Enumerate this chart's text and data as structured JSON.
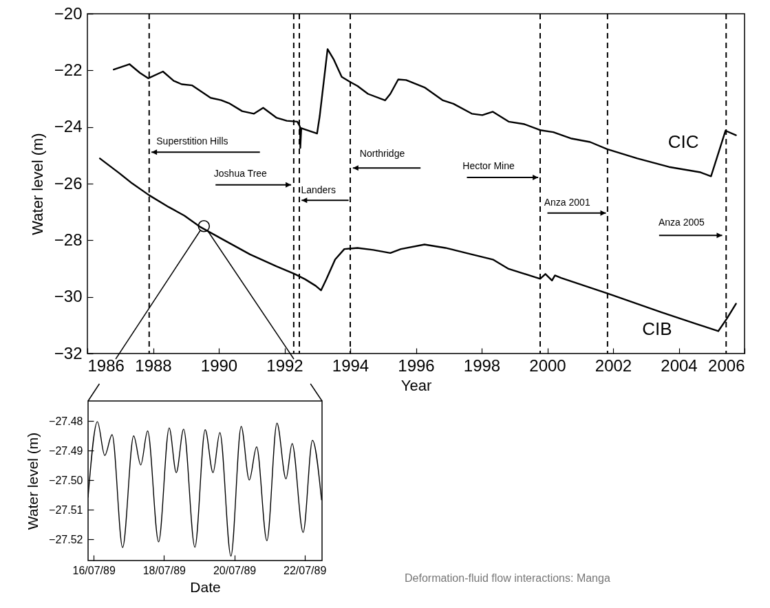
{
  "chart_data": [
    {
      "type": "line",
      "xlabel": "Year",
      "ylabel": "Water level (m)",
      "xlim": [
        1986,
        2006
      ],
      "ylim": [
        -32,
        -20
      ],
      "xticks": [
        1986,
        1988,
        1990,
        1992,
        1994,
        1996,
        1998,
        2000,
        2002,
        2004,
        2006
      ],
      "yticks": [
        -32,
        -30,
        -28,
        -26,
        -24,
        -22,
        -20
      ],
      "legend": false,
      "series": [
        {
          "name": "CIC",
          "color": "#000000",
          "x": [
            1986.8,
            1987.28,
            1987.6,
            1987.85,
            1988.3,
            1988.63,
            1988.87,
            1989.19,
            1989.75,
            1990.07,
            1990.31,
            1990.71,
            1991.07,
            1991.35,
            1991.75,
            1992.07,
            1992.39,
            1992.47,
            1992.48,
            1992.51,
            1992.99,
            1993.07,
            1993.31,
            1993.5,
            1993.74,
            1994.0,
            1994.22,
            1994.54,
            1995.06,
            1995.22,
            1995.46,
            1995.7,
            1996.26,
            1996.82,
            1997.14,
            1997.7,
            1998.02,
            1998.34,
            1998.82,
            1999.3,
            1999.78,
            2000.18,
            2000.74,
            2001.3,
            2001.82,
            2002.74,
            2003.7,
            2004.66,
            2004.98,
            2005.42,
            2005.74
          ],
          "values": [
            -21.97,
            -21.78,
            -22.09,
            -22.28,
            -22.04,
            -22.37,
            -22.49,
            -22.53,
            -22.97,
            -23.05,
            -23.16,
            -23.44,
            -23.53,
            -23.32,
            -23.67,
            -23.78,
            -23.81,
            -23.99,
            -24.74,
            -24.04,
            -24.23,
            -23.62,
            -21.25,
            -21.62,
            -22.23,
            -22.41,
            -22.55,
            -22.83,
            -23.06,
            -22.83,
            -22.32,
            -22.34,
            -22.6,
            -23.06,
            -23.18,
            -23.53,
            -23.58,
            -23.46,
            -23.81,
            -23.9,
            -24.11,
            -24.18,
            -24.41,
            -24.53,
            -24.78,
            -25.11,
            -25.41,
            -25.6,
            -25.74,
            -24.13,
            -24.29
          ]
        },
        {
          "name": "CIB",
          "color": "#000000",
          "x": [
            1986.38,
            1986.96,
            1987.36,
            1987.88,
            1988.48,
            1988.95,
            1989.45,
            1990.15,
            1990.95,
            1991.75,
            1992.31,
            1992.63,
            1992.95,
            1993.11,
            1993.27,
            1993.54,
            1993.82,
            1994.22,
            1994.7,
            1995.22,
            1995.54,
            1996.26,
            1996.9,
            1997.7,
            1998.34,
            1998.82,
            1999.78,
            1999.94,
            2000.14,
            2000.23,
            2000.42,
            2001.86,
            2003.46,
            2005.2,
            2005.46,
            2005.74
          ],
          "values": [
            -25.11,
            -25.62,
            -25.99,
            -26.41,
            -26.83,
            -27.13,
            -27.54,
            -27.99,
            -28.5,
            -28.92,
            -29.19,
            -29.38,
            -29.61,
            -29.77,
            -29.38,
            -28.68,
            -28.31,
            -28.27,
            -28.34,
            -28.45,
            -28.31,
            -28.15,
            -28.27,
            -28.5,
            -28.68,
            -29.01,
            -29.36,
            -29.19,
            -29.42,
            -29.24,
            -29.33,
            -29.89,
            -30.54,
            -31.21,
            -30.77,
            -30.24
          ]
        }
      ],
      "ref_lines": [
        {
          "axis": "x",
          "value": 1987.88,
          "label": "Superstition Hills",
          "color": "#000000",
          "line_style": "dashed"
        },
        {
          "axis": "x",
          "value": 1992.28,
          "label": "Joshua Tree",
          "color": "#000000",
          "line_style": "dashed"
        },
        {
          "axis": "x",
          "value": 1992.45,
          "label": "Landers",
          "color": "#000000",
          "line_style": "dashed"
        },
        {
          "axis": "x",
          "value": 1994.0,
          "label": "Northridge",
          "color": "#000000",
          "line_style": "dashed"
        },
        {
          "axis": "x",
          "value": 1999.78,
          "label": "Hector Mine",
          "color": "#000000",
          "line_style": "dashed"
        },
        {
          "axis": "x",
          "value": 2001.83,
          "label": "Anza 2001",
          "color": "#000000",
          "line_style": "dashed"
        },
        {
          "axis": "x",
          "value": 2005.44,
          "label": "Anza 2005",
          "color": "#000000",
          "line_style": "dashed"
        }
      ]
    },
    {
      "type": "line",
      "xlabel": "Date",
      "ylabel": "Water level (m)",
      "xlim": [
        "1989-07-15T20:09",
        "1989-07-22T11:53"
      ],
      "ylim": [
        -27.5271,
        -27.4732
      ],
      "xticks": [
        {
          "value": "1989-07-16",
          "label": "16/07/89"
        },
        {
          "value": "1989-07-18",
          "label": "18/07/89"
        },
        {
          "value": "1989-07-20",
          "label": "20/07/89"
        },
        {
          "value": "1989-07-22",
          "label": "22/07/89"
        }
      ],
      "yticks": [
        {
          "value": -27.52,
          "label": "−27.52"
        },
        {
          "value": -27.51,
          "label": "−27.51"
        },
        {
          "value": -27.5,
          "label": "−27.50"
        },
        {
          "value": -27.49,
          "label": "−27.49"
        },
        {
          "value": -27.48,
          "label": "−27.48"
        }
      ],
      "legend": false,
      "series": [
        {
          "color": "#000000",
          "x": [
            "1989-07-15T20:09",
            "1989-07-16T02:31",
            "1989-07-16T07:32",
            "1989-07-16T12:33",
            "1989-07-16T19:44",
            "1989-07-17T03:16",
            "1989-07-17T08:07",
            "1989-07-17T12:48",
            "1989-07-17T20:19",
            "1989-07-18T03:31",
            "1989-07-18T08:22",
            "1989-07-18T13:23",
            "1989-07-18T21:04",
            "1989-07-19T04:06",
            "1989-07-19T09:27",
            "1989-07-19T14:08",
            "1989-07-19T21:40",
            "1989-07-20T04:41",
            "1989-07-20T10:12",
            "1989-07-20T15:13",
            "1989-07-20T22:15",
            "1989-07-21T05:06",
            "1989-07-21T11:17",
            "1989-07-21T15:28",
            "1989-07-21T22:59",
            "1989-07-22T05:21",
            "1989-07-22T11:32"
          ],
          "values": [
            -27.5057,
            -27.4802,
            -27.4916,
            -27.4846,
            -27.5227,
            -27.485,
            -27.4948,
            -27.4833,
            -27.5208,
            -27.4823,
            -27.4974,
            -27.4827,
            -27.5226,
            -27.4829,
            -27.4974,
            -27.4839,
            -27.5256,
            -27.4818,
            -27.4999,
            -27.4887,
            -27.5204,
            -27.4807,
            -27.4995,
            -27.4876,
            -27.5176,
            -27.4865,
            -27.5066
          ]
        }
      ],
      "annotations": [
        "Deformation-fluid flow interactions: Manga"
      ]
    }
  ]
}
